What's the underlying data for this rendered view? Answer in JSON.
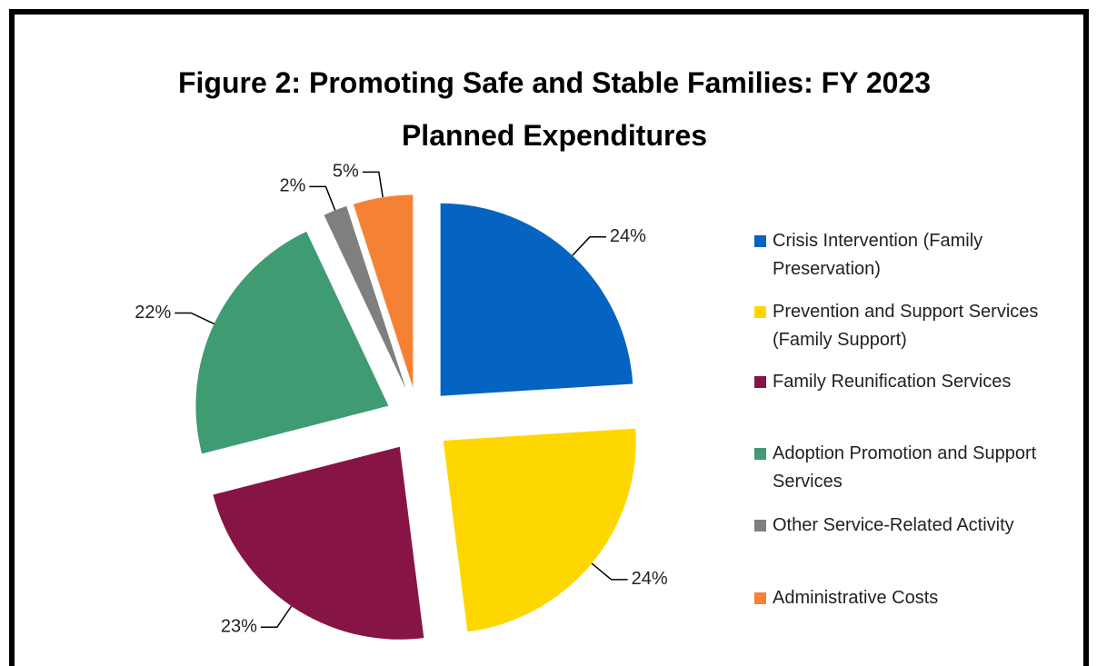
{
  "chart_data": {
    "type": "pie",
    "title": "Figure 2: Promoting Safe and Stable Families: FY 2023 Planned Expenditures",
    "categories": [
      "Crisis Intervention (Family Preservation)",
      "Prevention and Support Services (Family Support)",
      "Family Reunification Services",
      "Adoption Promotion and Support Services",
      "Other Service-Related Activity",
      "Administrative Costs"
    ],
    "values": [
      24,
      24,
      23,
      22,
      2,
      5
    ],
    "value_labels": [
      "24%",
      "24%",
      "23%",
      "22%",
      "2%",
      "5%"
    ],
    "colors": [
      "#0563c1",
      "#ffd700",
      "#861445",
      "#3f9b72",
      "#7f7f7f",
      "#f58234"
    ],
    "legend": "right"
  }
}
